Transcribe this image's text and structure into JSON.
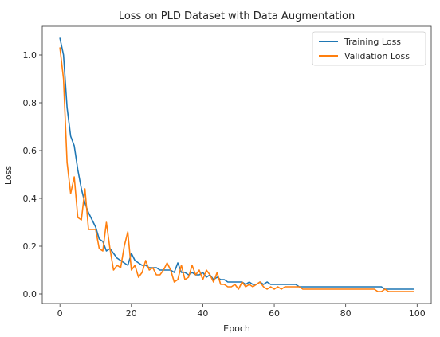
{
  "chart_data": {
    "type": "line",
    "title": "Loss on PLD Dataset with Data Augmentation",
    "xlabel": "Epoch",
    "ylabel": "Loss",
    "xlim": [
      -4.95,
      103.95
    ],
    "ylim": [
      -0.04,
      1.12
    ],
    "xticks": [
      0,
      20,
      40,
      60,
      80,
      100
    ],
    "yticks": [
      0.0,
      0.2,
      0.4,
      0.6,
      0.8,
      1.0
    ],
    "xtick_labels": [
      "0",
      "20",
      "40",
      "60",
      "80",
      "100"
    ],
    "ytick_labels": [
      "0.0",
      "0.2",
      "0.4",
      "0.6",
      "0.8",
      "1.0"
    ],
    "grid": false,
    "legend": "top-right",
    "x": [
      0,
      1,
      2,
      3,
      4,
      5,
      6,
      7,
      8,
      9,
      10,
      11,
      12,
      13,
      14,
      15,
      16,
      17,
      18,
      19,
      20,
      21,
      22,
      23,
      24,
      25,
      26,
      27,
      28,
      29,
      30,
      31,
      32,
      33,
      34,
      35,
      36,
      37,
      38,
      39,
      40,
      41,
      42,
      43,
      44,
      45,
      46,
      47,
      48,
      49,
      50,
      51,
      52,
      53,
      54,
      55,
      56,
      57,
      58,
      59,
      60,
      61,
      62,
      63,
      64,
      65,
      66,
      67,
      68,
      69,
      70,
      71,
      72,
      73,
      74,
      75,
      76,
      77,
      78,
      79,
      80,
      81,
      82,
      83,
      84,
      85,
      86,
      87,
      88,
      89,
      90,
      91,
      92,
      93,
      94,
      95,
      96,
      97,
      98,
      99
    ],
    "series": [
      {
        "name": "Training Loss",
        "color": "#1f77b4",
        "values": [
          1.07,
          1.0,
          0.78,
          0.66,
          0.62,
          0.52,
          0.44,
          0.38,
          0.34,
          0.31,
          0.28,
          0.23,
          0.22,
          0.18,
          0.19,
          0.17,
          0.15,
          0.14,
          0.13,
          0.12,
          0.17,
          0.14,
          0.13,
          0.12,
          0.12,
          0.11,
          0.11,
          0.11,
          0.1,
          0.1,
          0.1,
          0.1,
          0.09,
          0.13,
          0.09,
          0.09,
          0.08,
          0.09,
          0.08,
          0.08,
          0.09,
          0.07,
          0.08,
          0.06,
          0.07,
          0.06,
          0.06,
          0.05,
          0.05,
          0.05,
          0.05,
          0.05,
          0.04,
          0.05,
          0.04,
          0.04,
          0.05,
          0.04,
          0.05,
          0.04,
          0.04,
          0.04,
          0.04,
          0.04,
          0.04,
          0.04,
          0.04,
          0.03,
          0.03,
          0.03,
          0.03,
          0.03,
          0.03,
          0.03,
          0.03,
          0.03,
          0.03,
          0.03,
          0.03,
          0.03,
          0.03,
          0.03,
          0.03,
          0.03,
          0.03,
          0.03,
          0.03,
          0.03,
          0.03,
          0.03,
          0.03,
          0.02,
          0.02,
          0.02,
          0.02,
          0.02,
          0.02,
          0.02,
          0.02,
          0.02
        ]
      },
      {
        "name": "Validation Loss",
        "color": "#ff7f0e",
        "values": [
          1.03,
          0.9,
          0.55,
          0.42,
          0.49,
          0.32,
          0.31,
          0.44,
          0.27,
          0.27,
          0.27,
          0.19,
          0.18,
          0.3,
          0.19,
          0.1,
          0.12,
          0.11,
          0.2,
          0.26,
          0.1,
          0.12,
          0.07,
          0.09,
          0.14,
          0.1,
          0.11,
          0.08,
          0.08,
          0.1,
          0.13,
          0.1,
          0.05,
          0.06,
          0.12,
          0.06,
          0.07,
          0.12,
          0.08,
          0.1,
          0.06,
          0.1,
          0.08,
          0.05,
          0.09,
          0.04,
          0.04,
          0.03,
          0.03,
          0.04,
          0.02,
          0.05,
          0.03,
          0.04,
          0.03,
          0.04,
          0.05,
          0.03,
          0.02,
          0.03,
          0.02,
          0.03,
          0.02,
          0.03,
          0.03,
          0.03,
          0.03,
          0.03,
          0.02,
          0.02,
          0.02,
          0.02,
          0.02,
          0.02,
          0.02,
          0.02,
          0.02,
          0.02,
          0.02,
          0.02,
          0.02,
          0.02,
          0.02,
          0.02,
          0.02,
          0.02,
          0.02,
          0.02,
          0.02,
          0.01,
          0.01,
          0.02,
          0.01,
          0.01,
          0.01,
          0.01,
          0.01,
          0.01,
          0.01,
          0.01
        ]
      }
    ]
  }
}
